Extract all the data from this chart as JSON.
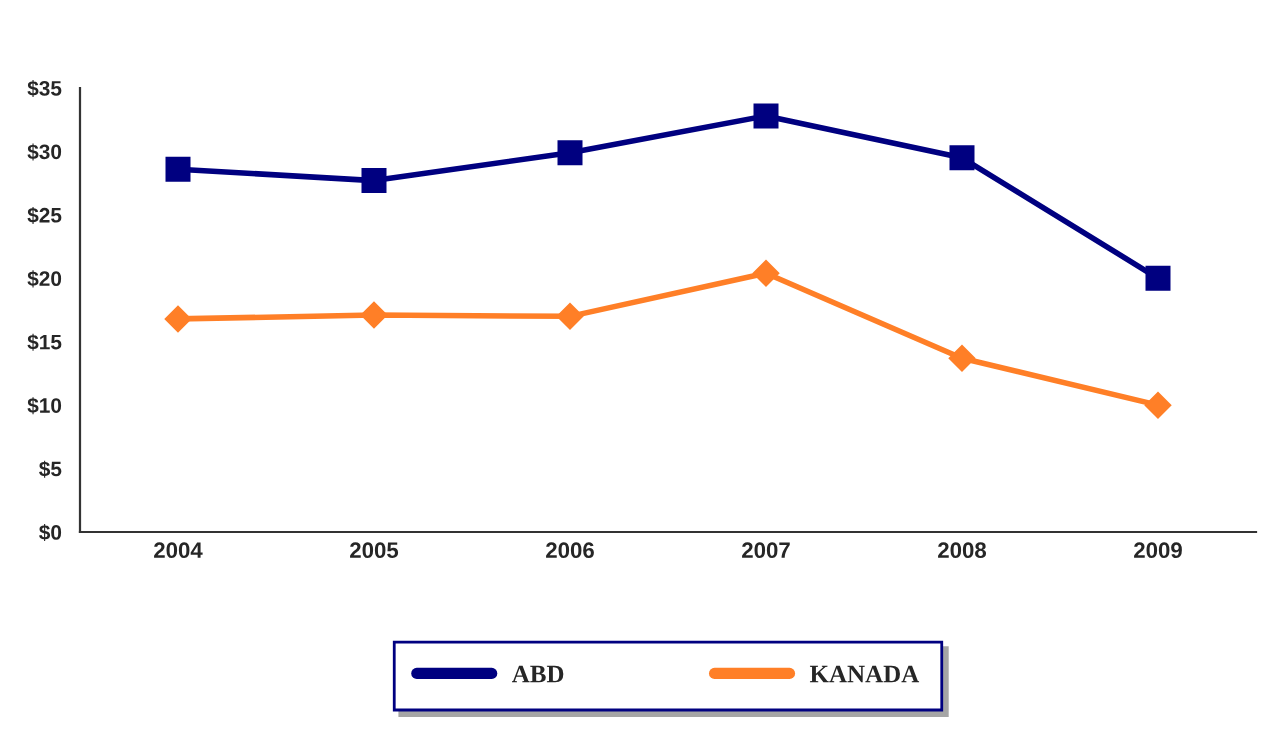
{
  "chart_data": {
    "type": "line",
    "categories": [
      "2004",
      "2005",
      "2006",
      "2007",
      "2008",
      "2009"
    ],
    "series": [
      {
        "name": "ABD",
        "color": "#000080",
        "marker": "square",
        "values": [
          28.6,
          27.7,
          29.9,
          32.8,
          29.5,
          20.0
        ]
      },
      {
        "name": "KANADA",
        "color": "#ff7f27",
        "marker": "diamond",
        "values": [
          16.8,
          17.1,
          17.0,
          20.4,
          13.7,
          10.0
        ]
      }
    ],
    "ylim": [
      0,
      35
    ],
    "yticks": [
      {
        "value": 0,
        "label": "$0"
      },
      {
        "value": 5,
        "label": "$5"
      },
      {
        "value": 10,
        "label": "$10"
      },
      {
        "value": 15,
        "label": "$15"
      },
      {
        "value": 20,
        "label": "$20"
      },
      {
        "value": 25,
        "label": "$25"
      },
      {
        "value": 30,
        "label": "$30"
      },
      {
        "value": 35,
        "label": "$35"
      }
    ],
    "grid": false,
    "legend": "bottom",
    "line_style": "solid"
  }
}
